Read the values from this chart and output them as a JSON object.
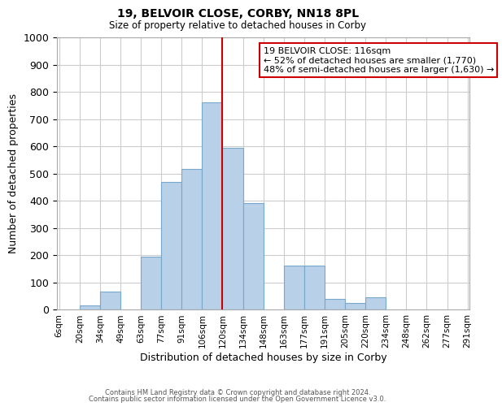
{
  "title": "19, BELVOIR CLOSE, CORBY, NN18 8PL",
  "subtitle": "Size of property relative to detached houses in Corby",
  "xlabel": "Distribution of detached houses by size in Corby",
  "ylabel": "Number of detached properties",
  "bin_labels": [
    "6sqm",
    "20sqm",
    "34sqm",
    "49sqm",
    "63sqm",
    "77sqm",
    "91sqm",
    "106sqm",
    "120sqm",
    "134sqm",
    "148sqm",
    "163sqm",
    "177sqm",
    "191sqm",
    "205sqm",
    "220sqm",
    "234sqm",
    "248sqm",
    "262sqm",
    "277sqm",
    "291sqm"
  ],
  "bar_heights": [
    0,
    15,
    65,
    0,
    195,
    470,
    515,
    760,
    595,
    390,
    0,
    160,
    160,
    40,
    25,
    45,
    0,
    0,
    0,
    0
  ],
  "bar_color": "#b8d0e8",
  "bar_edge_color": "#7aa8cc",
  "property_line_idx": 8,
  "property_line_color": "#cc0000",
  "annotation_text": "19 BELVOIR CLOSE: 116sqm\n← 52% of detached houses are smaller (1,770)\n48% of semi-detached houses are larger (1,630) →",
  "annotation_box_edge_color": "#cc0000",
  "annotation_box_face_color": "#ffffff",
  "ylim": [
    0,
    1000
  ],
  "yticks": [
    0,
    100,
    200,
    300,
    400,
    500,
    600,
    700,
    800,
    900,
    1000
  ],
  "footer_line1": "Contains HM Land Registry data © Crown copyright and database right 2024.",
  "footer_line2": "Contains public sector information licensed under the Open Government Licence v3.0.",
  "bg_color": "#ffffff",
  "grid_color": "#cccccc"
}
